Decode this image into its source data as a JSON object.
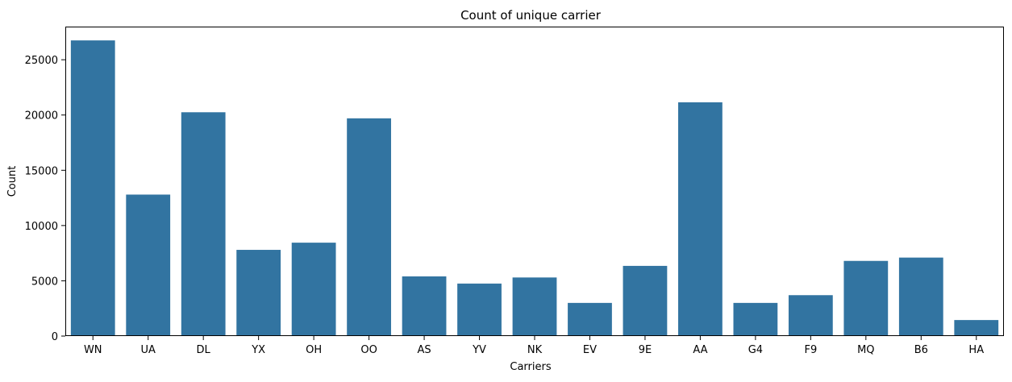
{
  "chart_data": {
    "type": "bar",
    "title": "Count of unique carrier",
    "xlabel": "Carriers",
    "ylabel": "Count",
    "categories": [
      "WN",
      "UA",
      "DL",
      "YX",
      "OH",
      "OO",
      "AS",
      "YV",
      "NK",
      "EV",
      "9E",
      "AA",
      "G4",
      "F9",
      "MQ",
      "B6",
      "HA"
    ],
    "values": [
      26750,
      12800,
      20250,
      7800,
      8450,
      19700,
      5400,
      4750,
      5300,
      3000,
      6350,
      21150,
      3000,
      3700,
      6800,
      7100,
      1450
    ],
    "ylim": [
      0,
      28000
    ],
    "yticks": [
      0,
      5000,
      10000,
      15000,
      20000,
      25000
    ],
    "grid": false,
    "bar_color": "#3274a1"
  }
}
